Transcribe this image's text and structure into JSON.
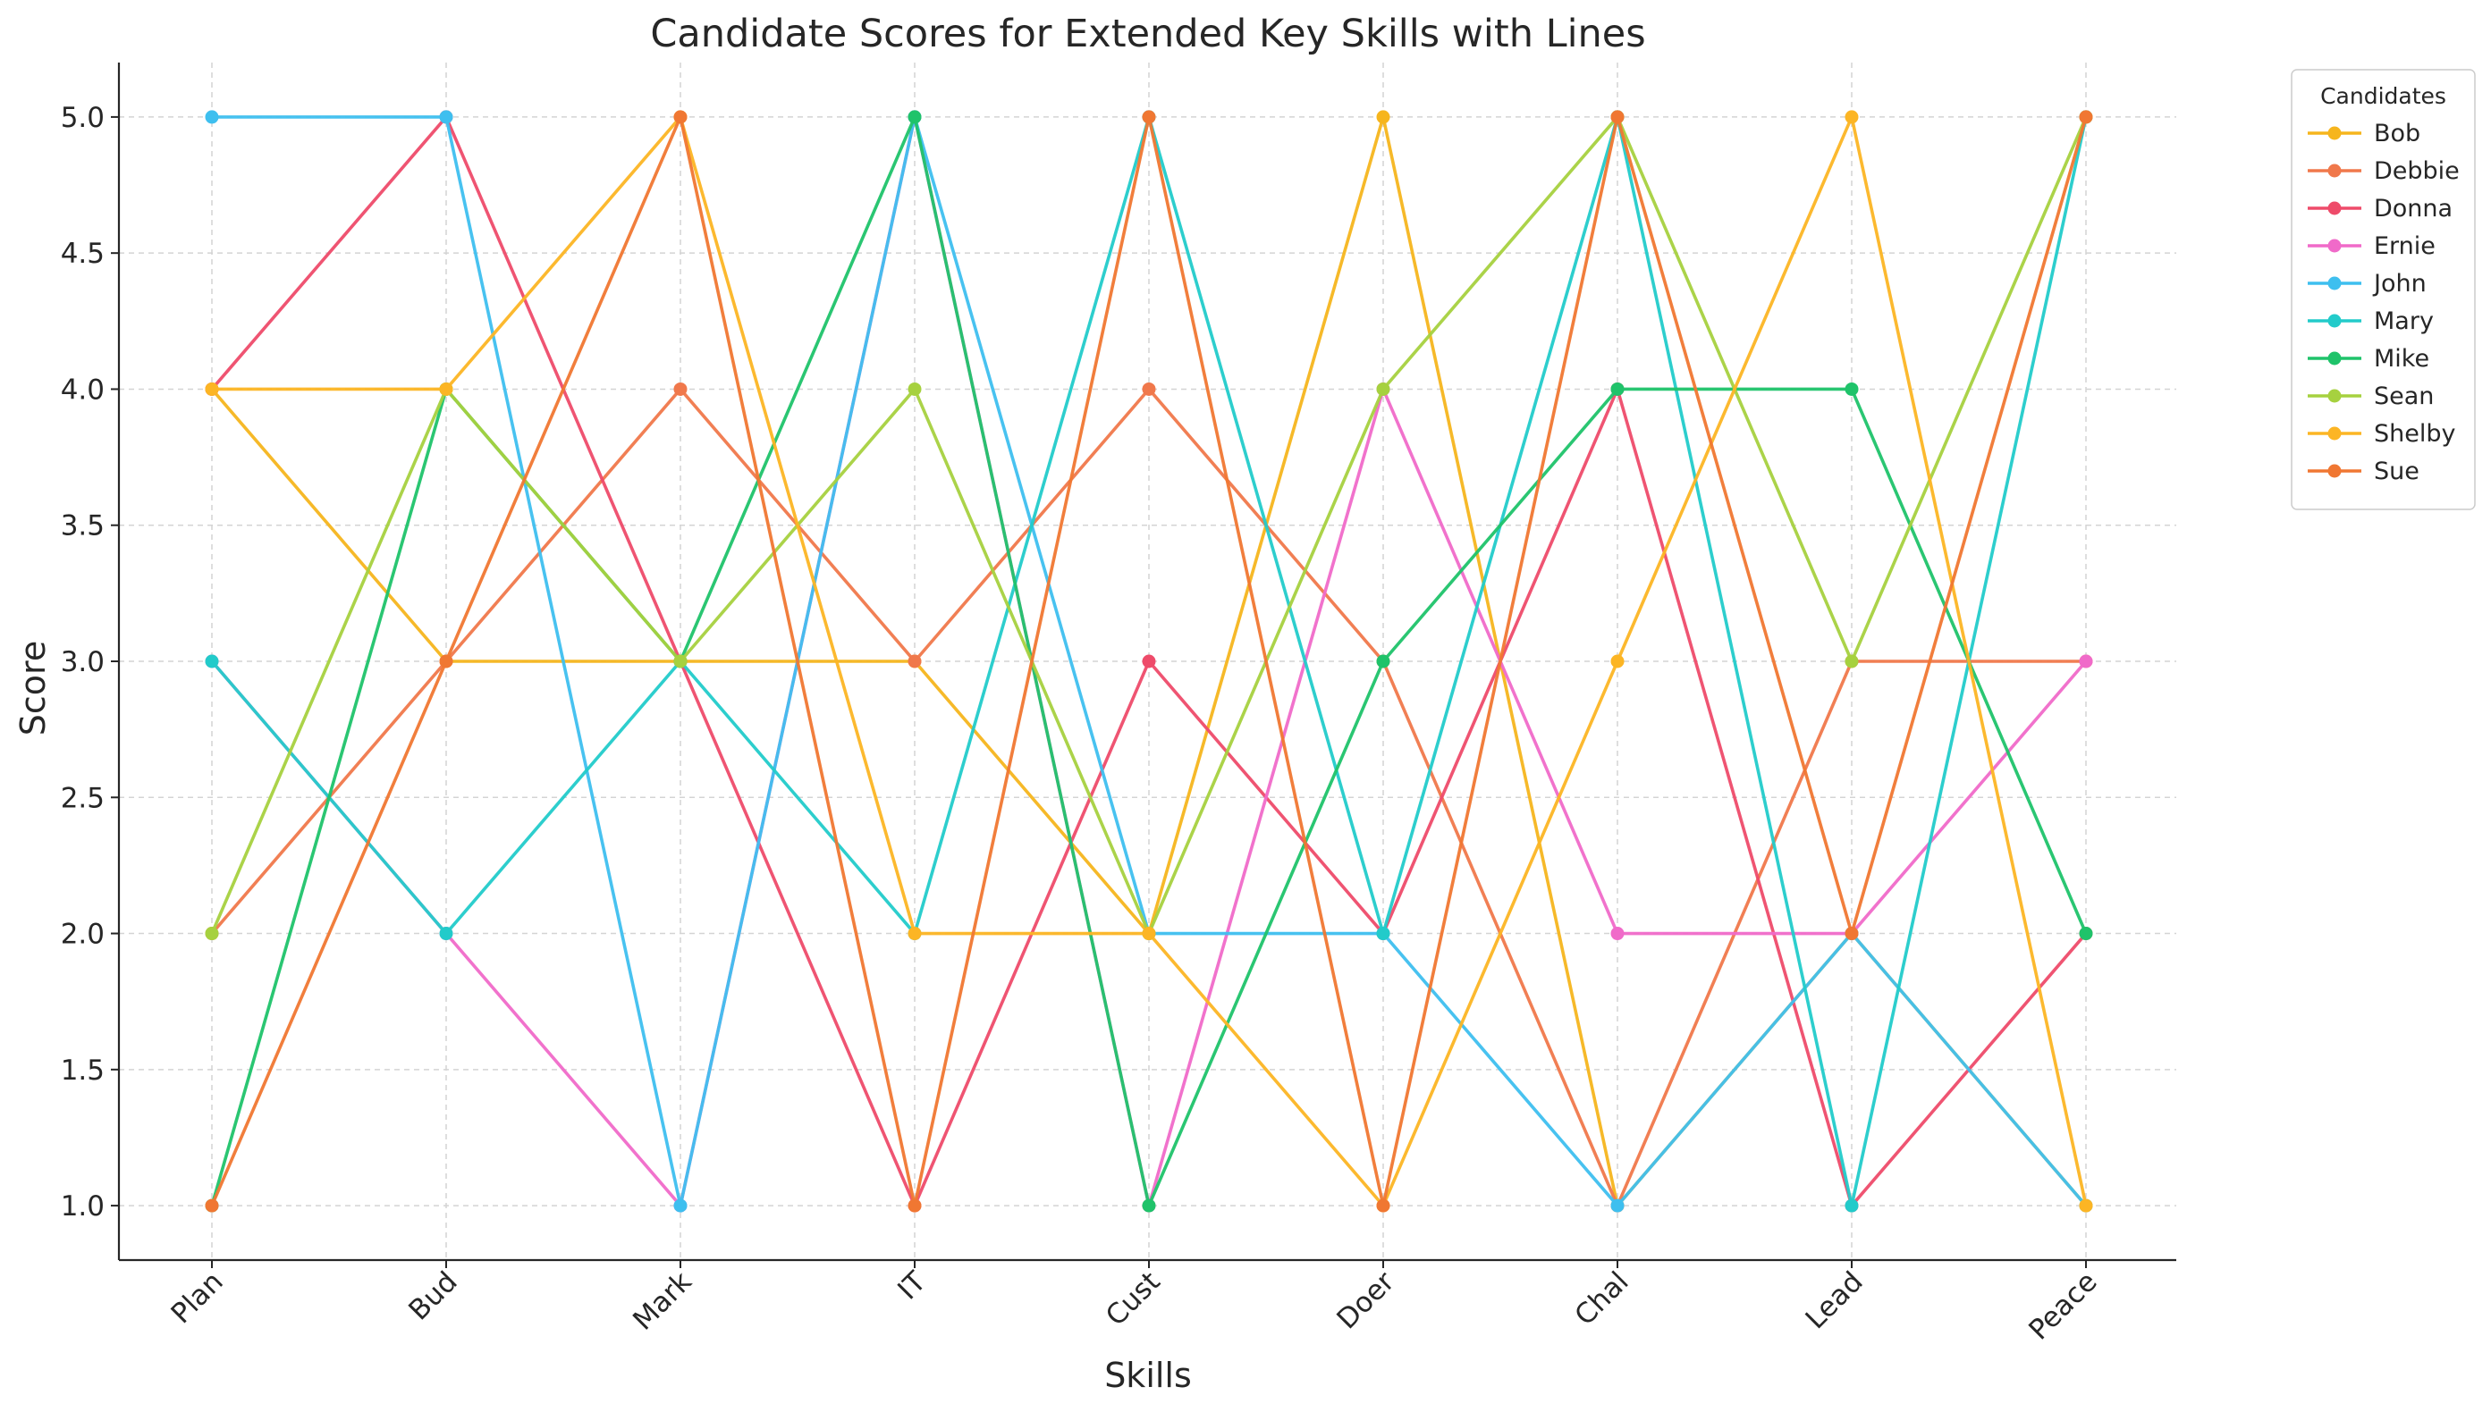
{
  "chart_data": {
    "type": "line",
    "title": "Candidate Scores for Extended Key Skills with Lines",
    "xlabel": "Skills",
    "ylabel": "Score",
    "categories": [
      "Plan",
      "Bud",
      "Mark",
      "IT",
      "Cust",
      "Doer",
      "Chal",
      "Lead",
      "Peace"
    ],
    "ylim": [
      0.8,
      5.2
    ],
    "yticks": [
      "1.0",
      "1.5",
      "2.0",
      "2.5",
      "3.0",
      "3.5",
      "4.0",
      "4.5",
      "5.0"
    ],
    "grid": true,
    "legend_title": "Candidates",
    "legend_position": "outside top-right",
    "series": [
      {
        "name": "Bob",
        "color": "#f6b51d",
        "values": [
          4,
          3,
          3,
          3,
          2,
          5,
          1,
          2,
          1
        ]
      },
      {
        "name": "Debbie",
        "color": "#f0784b",
        "values": [
          2,
          3,
          4,
          3,
          4,
          3,
          1,
          3,
          3
        ]
      },
      {
        "name": "Donna",
        "color": "#ee4b6a",
        "values": [
          4,
          5,
          3,
          1,
          3,
          2,
          4,
          1,
          2
        ]
      },
      {
        "name": "Ernie",
        "color": "#f06ac9",
        "values": [
          3,
          2,
          1,
          5,
          1,
          4,
          2,
          2,
          3
        ]
      },
      {
        "name": "John",
        "color": "#3ebfef",
        "values": [
          5,
          5,
          1,
          5,
          2,
          2,
          1,
          2,
          1
        ]
      },
      {
        "name": "Mary",
        "color": "#22cbca",
        "values": [
          3,
          2,
          3,
          2,
          5,
          2,
          5,
          1,
          5
        ]
      },
      {
        "name": "Mike",
        "color": "#1fc36a",
        "values": [
          1,
          4,
          3,
          5,
          1,
          3,
          4,
          4,
          2
        ]
      },
      {
        "name": "Sean",
        "color": "#a6d13f",
        "values": [
          2,
          4,
          3,
          4,
          2,
          4,
          5,
          3,
          5
        ]
      },
      {
        "name": "Shelby",
        "color": "#fcb524",
        "values": [
          4,
          4,
          5,
          2,
          2,
          1,
          3,
          5,
          1
        ]
      },
      {
        "name": "Sue",
        "color": "#f07732",
        "values": [
          1,
          3,
          5,
          1,
          5,
          1,
          5,
          2,
          5
        ]
      }
    ]
  }
}
